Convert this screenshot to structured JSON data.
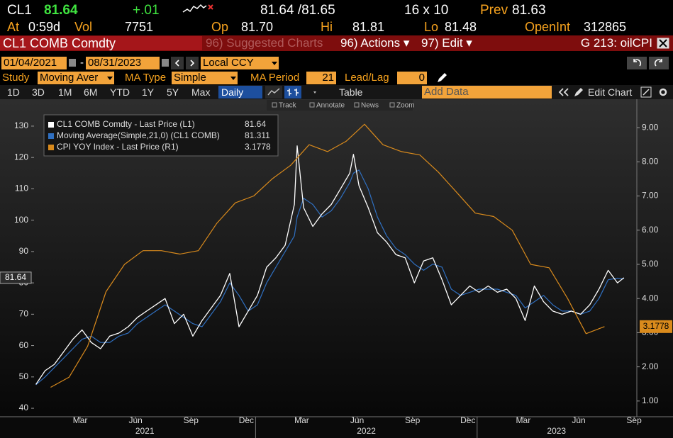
{
  "header": {
    "ticker": "CL1",
    "last": "81.64",
    "change": "+.01",
    "bid_ask": "81.64 /81.65",
    "size": "16 x 10",
    "prev_label": "Prev",
    "prev": "81.63"
  },
  "quote": [
    {
      "label": "At",
      "value": "0:59d"
    },
    {
      "label": "Vol",
      "value": "7751"
    },
    {
      "label": "Op",
      "value": "81.70"
    },
    {
      "label": "Hi",
      "value": "81.81"
    },
    {
      "label": "Lo",
      "value": "81.48"
    },
    {
      "label": "OpenInt",
      "value": "312865"
    }
  ],
  "title_bar": {
    "security": "CL1 COMB Comdty",
    "suggested": "96) Suggested Charts",
    "actions": "96) Actions ▾",
    "edit": "97) Edit ▾",
    "chart_id": "G 213: oilCPI"
  },
  "range": {
    "start": "01/04/2021",
    "separator": "-",
    "end": "08/31/2023",
    "currency": "Local CCY"
  },
  "study": {
    "label": "Study",
    "study": "Moving Aver",
    "ma_type_label": "MA Type",
    "ma_type": "Simple",
    "ma_period_label": "MA Period",
    "ma_period": "21",
    "lead_lag_label": "Lead/Lag",
    "lead_lag": "0"
  },
  "toolbar": {
    "periods": [
      "1D",
      "3D",
      "1M",
      "6M",
      "YTD",
      "1Y",
      "5Y",
      "Max"
    ],
    "frequency": "Daily",
    "table": "Table",
    "add_data": "Add Data",
    "edit_chart": "Edit Chart"
  },
  "chart_tools": [
    "Track",
    "Annotate",
    "News",
    "Zoom"
  ],
  "chart_data": {
    "type": "line",
    "xlim": [
      0,
      32.65
    ],
    "xticks": [
      {
        "value": 2.5,
        "label": "Mar"
      },
      {
        "value": 5.5,
        "label": "Jun"
      },
      {
        "value": 8.5,
        "label": "Sep"
      },
      {
        "value": 11.5,
        "label": "Dec"
      },
      {
        "value": 14.5,
        "label": "Mar"
      },
      {
        "value": 17.5,
        "label": "Jun"
      },
      {
        "value": 20.5,
        "label": "Sep"
      },
      {
        "value": 23.5,
        "label": "Dec"
      },
      {
        "value": 26.5,
        "label": "Mar"
      },
      {
        "value": 29.5,
        "label": "Jun"
      },
      {
        "value": 32.5,
        "label": "Sep"
      }
    ],
    "year_ticks": [
      {
        "value": 6,
        "label": "2021"
      },
      {
        "value": 18,
        "label": "2022"
      },
      {
        "value": 28.3,
        "label": "2023"
      }
    ],
    "year_breaks": [
      12,
      24
    ],
    "ylim": [
      37.3,
      137.9
    ],
    "yticks": [
      40,
      50,
      60,
      70,
      80,
      90,
      100,
      110,
      120,
      130
    ],
    "y2lim": [
      0.54,
      9.77
    ],
    "y2ticks": [
      {
        "value": 1,
        "label": "1.00"
      },
      {
        "value": 2,
        "label": "2.00"
      },
      {
        "value": 3,
        "label": "3.00"
      },
      {
        "value": 4,
        "label": "4.00"
      },
      {
        "value": 5,
        "label": "5.00"
      },
      {
        "value": 6,
        "label": "6.00"
      },
      {
        "value": 7,
        "label": "7.00"
      },
      {
        "value": 8,
        "label": "8.00"
      },
      {
        "value": 9,
        "label": "9.00"
      }
    ],
    "series": [
      {
        "name": "CL1 COMB Comdty - Last Price (L1)",
        "color": "#ffffff",
        "axis": "y",
        "x": [
          0.1,
          0.6,
          1.1,
          1.6,
          2.1,
          2.6,
          3.1,
          3.6,
          4.1,
          4.6,
          5.1,
          5.6,
          6.1,
          6.6,
          7.1,
          7.6,
          8.1,
          8.6,
          9.1,
          9.6,
          10.1,
          10.6,
          11.1,
          11.6,
          12.1,
          12.6,
          13.1,
          13.6,
          14.1,
          14.25,
          14.6,
          15.1,
          15.6,
          16.1,
          16.6,
          17.1,
          17.3,
          17.6,
          18.1,
          18.6,
          19.1,
          19.6,
          20.1,
          20.6,
          21.1,
          21.6,
          22.1,
          22.6,
          23.1,
          23.6,
          24.1,
          24.6,
          25.1,
          25.6,
          26.1,
          26.6,
          27.1,
          27.6,
          28.1,
          28.6,
          29.1,
          29.6,
          30.1,
          30.6,
          31.1,
          31.6,
          31.95
        ],
        "values": [
          47.6,
          52,
          54,
          58,
          62,
          65,
          61,
          59,
          63,
          64,
          66,
          69,
          71,
          73,
          75,
          67,
          70,
          63,
          68,
          72,
          76,
          83,
          66,
          71,
          76,
          85,
          88,
          92,
          105,
          123.7,
          104,
          98,
          102,
          105,
          110,
          115,
          121,
          111,
          104,
          96,
          93,
          89,
          88,
          80,
          87,
          88,
          81,
          73,
          76,
          79,
          77,
          79,
          77,
          78,
          75,
          68,
          79,
          74,
          71,
          70,
          71,
          70,
          73,
          78,
          84,
          80,
          81.64
        ]
      },
      {
        "name": "Moving Average(Simple,21,0) (CL1 COMB)",
        "color": "#2f6fc0",
        "axis": "y",
        "x": [
          0.1,
          0.6,
          1.1,
          1.6,
          2.1,
          2.6,
          3.1,
          3.6,
          4.1,
          4.6,
          5.1,
          5.6,
          6.1,
          6.6,
          7.1,
          7.6,
          8.1,
          8.6,
          9.1,
          9.6,
          10.1,
          10.6,
          11.1,
          11.6,
          12.1,
          12.6,
          13.1,
          13.6,
          14.1,
          14.25,
          14.6,
          15.1,
          15.6,
          16.1,
          16.6,
          17.1,
          17.3,
          17.6,
          18.1,
          18.6,
          19.1,
          19.6,
          20.1,
          20.6,
          21.1,
          21.6,
          22.1,
          22.6,
          23.1,
          23.6,
          24.1,
          24.6,
          25.1,
          25.6,
          26.1,
          26.6,
          27.1,
          27.6,
          28.1,
          28.6,
          29.1,
          29.6,
          30.1,
          30.6,
          31.1,
          31.6,
          31.95
        ],
        "values": [
          47.5,
          50,
          53,
          56,
          59,
          62,
          63,
          61,
          61,
          63,
          64,
          67,
          69,
          71,
          73,
          71,
          69,
          67,
          66,
          70,
          74,
          80,
          76,
          71,
          73,
          80,
          85,
          90,
          95,
          101,
          107,
          105,
          101,
          103,
          107,
          112,
          115,
          116,
          110,
          101,
          95,
          91,
          89,
          86,
          84,
          86,
          85,
          78,
          76,
          77,
          78,
          78,
          78,
          77,
          76,
          72,
          74,
          76,
          73,
          71,
          71,
          70,
          71,
          75,
          81,
          81.5,
          81.311
        ]
      },
      {
        "name": "CPI YOY Index - Last Price (R1)",
        "color": "#d98a1c",
        "axis": "y2",
        "x": [
          0.9,
          1.9,
          2.9,
          3.9,
          4.9,
          5.9,
          6.9,
          7.9,
          8.9,
          9.9,
          10.9,
          11.9,
          12.9,
          13.9,
          14.9,
          15.9,
          16.9,
          17.9,
          18.9,
          19.9,
          20.9,
          21.9,
          22.9,
          23.9,
          24.9,
          25.9,
          26.9,
          27.9,
          28.9,
          29.9,
          30.9
        ],
        "values": [
          1.4,
          1.7,
          2.6,
          4.2,
          5.0,
          5.4,
          5.4,
          5.3,
          5.4,
          6.2,
          6.8,
          7.0,
          7.5,
          7.9,
          8.5,
          8.3,
          8.6,
          9.1,
          8.5,
          8.3,
          8.2,
          7.7,
          7.1,
          6.5,
          6.4,
          6.0,
          5.0,
          4.9,
          4.0,
          2.97,
          3.1778
        ]
      }
    ]
  }
}
